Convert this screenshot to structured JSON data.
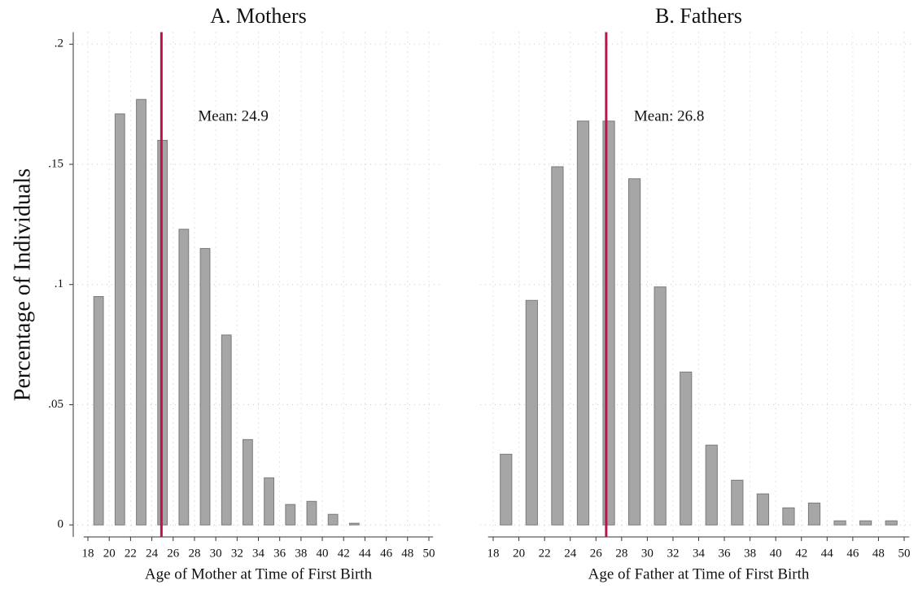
{
  "chart_data": [
    {
      "type": "bar",
      "title": "A. Mothers",
      "xlabel": "Age of Mother at Time of First Birth",
      "ylabel": "Percentage of Individuals",
      "x": [
        19,
        21,
        23,
        25,
        27,
        29,
        31,
        33,
        35,
        37,
        39,
        41,
        43
      ],
      "values": [
        0.095,
        0.171,
        0.177,
        0.16,
        0.123,
        0.115,
        0.079,
        0.0355,
        0.0196,
        0.0085,
        0.0098,
        0.0044,
        0.0007
      ],
      "color": "#a6a6a6",
      "edgecolor": "#7a7a7a",
      "mean": {
        "value": 24.9,
        "label": "Mean: 24.9"
      },
      "mean_color": "#c0124a",
      "xlim": [
        17.6,
        50.4
      ],
      "xticks": [
        18,
        20,
        22,
        24,
        26,
        28,
        30,
        32,
        34,
        36,
        38,
        40,
        42,
        44,
        46,
        48,
        50
      ],
      "ylim": [
        -0.005,
        0.205
      ],
      "yticks": [
        0,
        {
          "value": 0.05,
          "label": ".05"
        },
        {
          "value": 0.1,
          "label": ".1"
        },
        {
          "value": 0.15,
          "label": ".15"
        },
        {
          "value": 0.2,
          "label": ".2"
        }
      ],
      "grid": true
    },
    {
      "type": "bar",
      "title": "B. Fathers",
      "xlabel": "Age of Father at Time of First Birth",
      "x": [
        19,
        21,
        23,
        25,
        27,
        29,
        31,
        33,
        35,
        37,
        39,
        41,
        43,
        45,
        47,
        49
      ],
      "values": [
        0.0294,
        0.0934,
        0.149,
        0.168,
        0.168,
        0.144,
        0.099,
        0.0636,
        0.0332,
        0.0186,
        0.0129,
        0.0071,
        0.0091,
        0.0017,
        0.0017,
        0.0017
      ],
      "color": "#a6a6a6",
      "edgecolor": "#7a7a7a",
      "mean": {
        "value": 26.8,
        "label": "Mean: 26.8"
      },
      "mean_color": "#c0124a",
      "xlim": [
        17.6,
        50.4
      ],
      "xticks": [
        18,
        20,
        22,
        24,
        26,
        28,
        30,
        32,
        34,
        36,
        38,
        40,
        42,
        44,
        46,
        48,
        50
      ],
      "ylim": [
        -0.005,
        0.205
      ],
      "yticks": [
        0,
        0.05,
        0.1,
        0.15,
        0.2
      ],
      "ytick_labels": false,
      "grid": true
    }
  ]
}
